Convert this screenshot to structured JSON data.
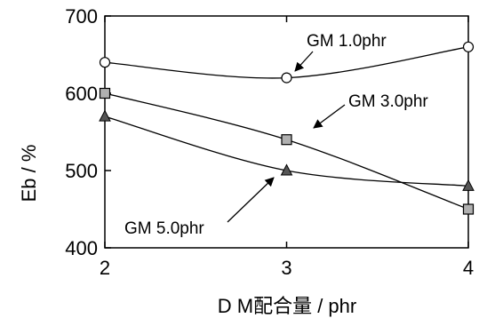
{
  "chart_data": {
    "type": "line",
    "title": "",
    "xlabel": "D M配合量 / phr",
    "ylabel": "Eb / %",
    "x": [
      2,
      3,
      4
    ],
    "x_ticks": [
      "2",
      "3",
      "4"
    ],
    "xlim": [
      2,
      4
    ],
    "y_ticks": [
      "400",
      "500",
      "600",
      "700"
    ],
    "ylim": [
      400,
      700
    ],
    "grid": false,
    "legend": "annotations with arrows",
    "series": [
      {
        "name": "GM 1.0phr",
        "marker": "circle",
        "color": "#ffffff",
        "values": [
          640,
          620,
          660
        ]
      },
      {
        "name": "GM 3.0phr",
        "marker": "square",
        "color": "#b0b0b0",
        "values": [
          600,
          540,
          450
        ]
      },
      {
        "name": "GM 5.0phr",
        "marker": "triangle",
        "color": "#555555",
        "values": [
          570,
          500,
          480
        ]
      }
    ],
    "annotations": [
      {
        "text": "GM 1.0phr",
        "series": 0,
        "point_index": 1
      },
      {
        "text": "GM 3.0phr",
        "series": 1,
        "point_index": 1
      },
      {
        "text": "GM 5.0phr",
        "series": 2,
        "point_index": 1
      }
    ]
  }
}
